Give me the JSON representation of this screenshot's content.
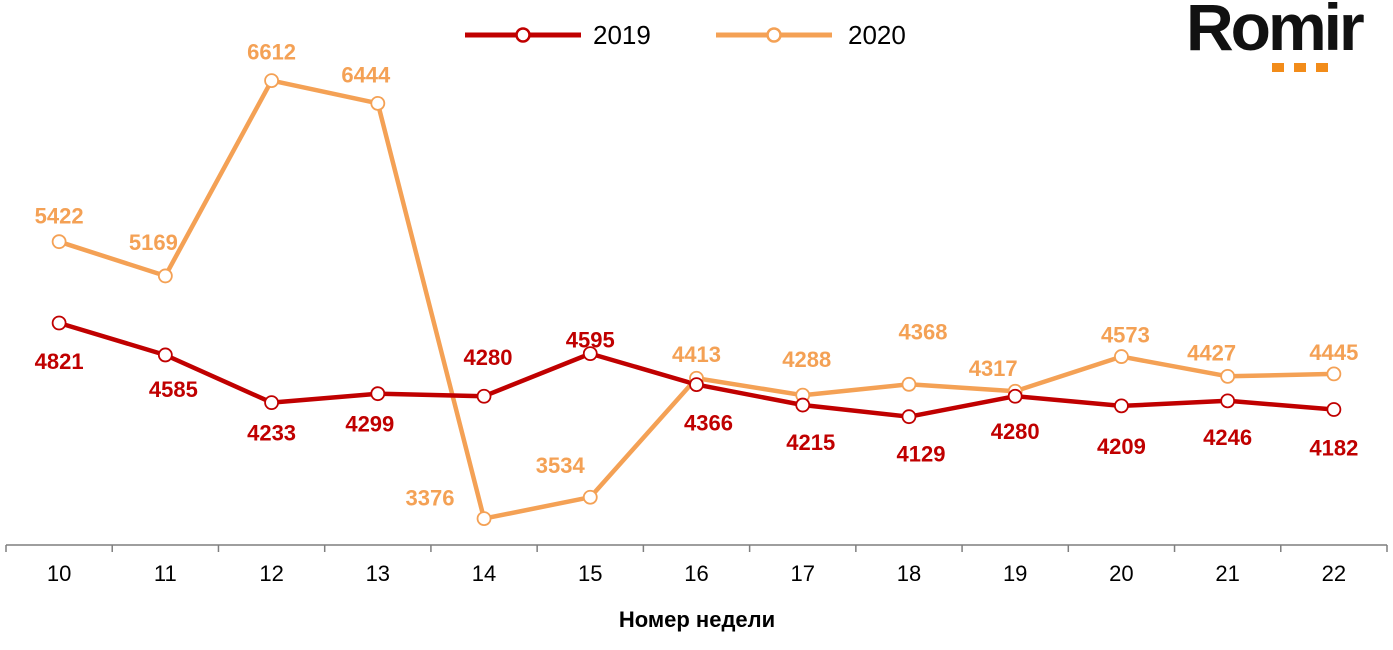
{
  "logo": {
    "text": "Romir"
  },
  "chart_data": {
    "type": "line",
    "categories": [
      "10",
      "11",
      "12",
      "13",
      "14",
      "15",
      "16",
      "17",
      "18",
      "19",
      "20",
      "21",
      "22"
    ],
    "xlabel": "Номер недели",
    "ylabel": "",
    "grid": false,
    "legend_position": "top-center",
    "ylim": [
      3200,
      6800
    ],
    "series": [
      {
        "name": "2019",
        "color": "#c00000",
        "values": [
          4821,
          4585,
          4233,
          4299,
          4280,
          4595,
          4366,
          4215,
          4129,
          4280,
          4209,
          4246,
          4182
        ]
      },
      {
        "name": "2020",
        "color": "#f4a155",
        "values": [
          5422,
          5169,
          6612,
          6444,
          3376,
          3534,
          4413,
          4288,
          4368,
          4317,
          4573,
          4427,
          4445
        ]
      }
    ]
  }
}
